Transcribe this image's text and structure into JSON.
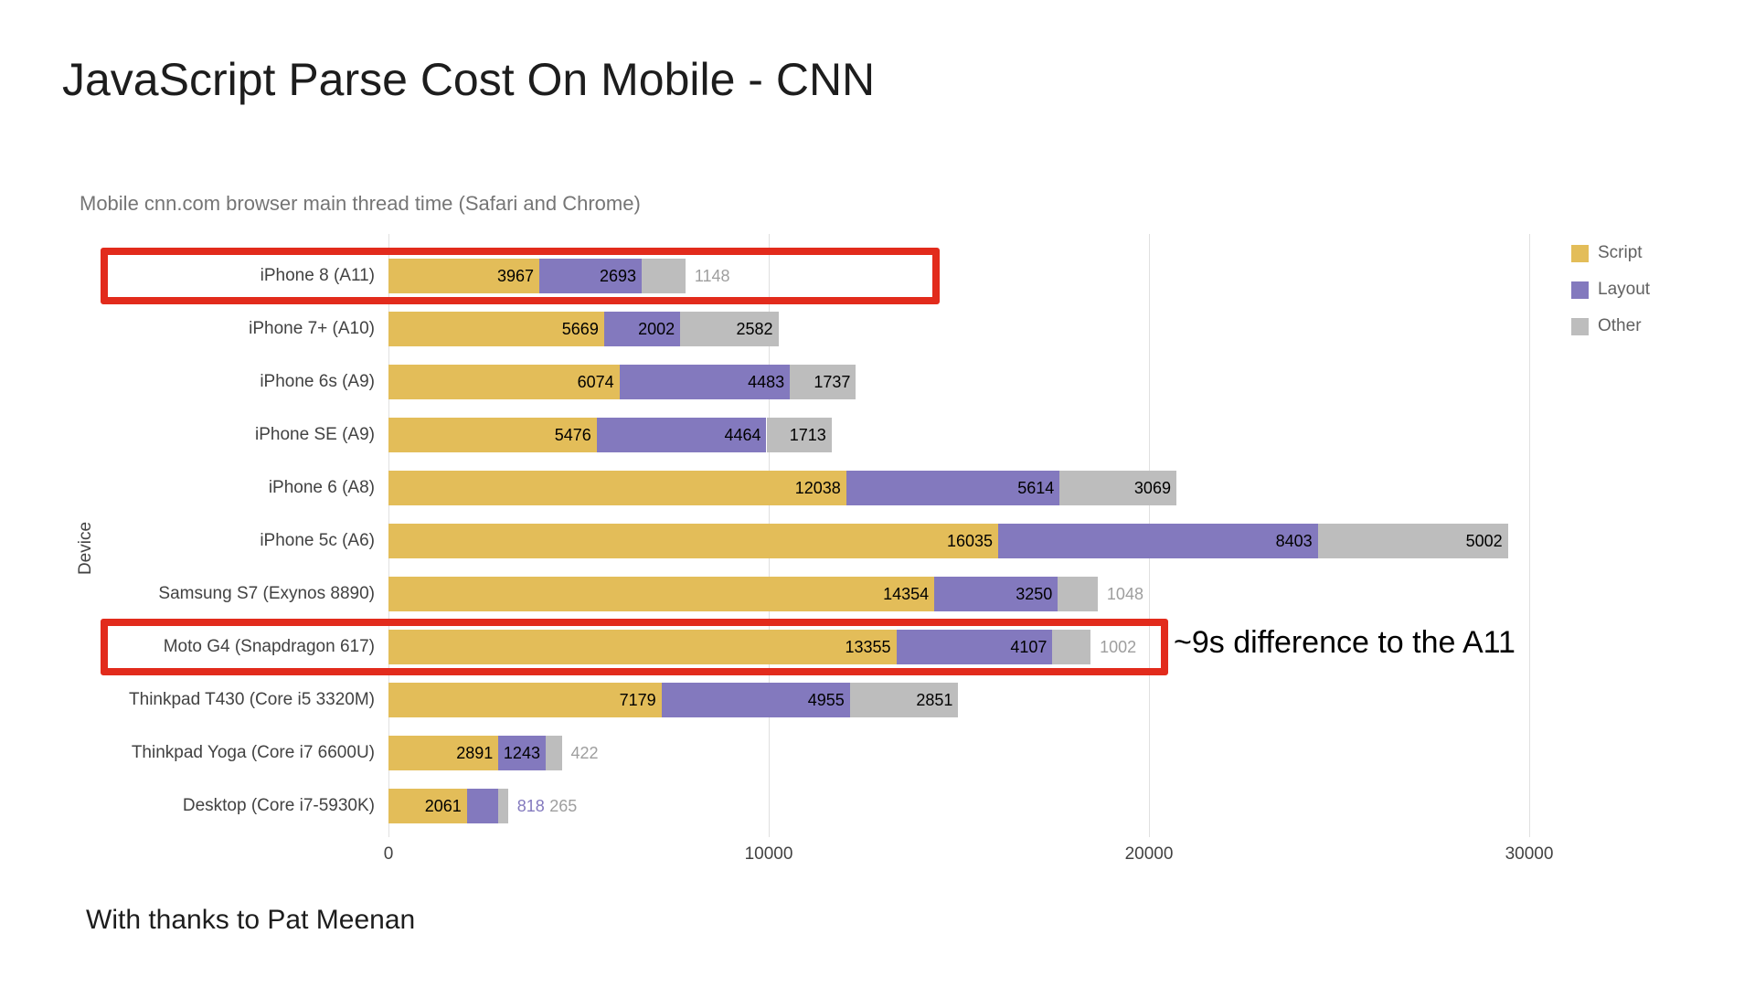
{
  "page": {
    "title": "JavaScript Parse Cost On Mobile - CNN",
    "footer": "With thanks to Pat Meenan",
    "annotation": "~9s difference to the A11"
  },
  "colors": {
    "script": "#E3BD59",
    "layout": "#8379BE",
    "other": "#BDBDBD",
    "highlight_box": "#E22B1C",
    "grid": "#E0E0E0",
    "subtitle_text": "#757575",
    "axis_text": "#424242",
    "legend_text": "#616161"
  },
  "chart_data": {
    "type": "bar",
    "orientation": "horizontal",
    "stacked": true,
    "title": "Mobile cnn.com browser main thread time (Safari and Chrome)",
    "xlabel": "",
    "ylabel": "Device",
    "xlim": [
      0,
      33000
    ],
    "xticks": [
      0,
      10000,
      20000,
      30000
    ],
    "grid": "vertical",
    "legend_position": "top-right",
    "categories": [
      "iPhone 8 (A11)",
      "iPhone 7+ (A10)",
      "iPhone 6s (A9)",
      "iPhone SE (A9)",
      "iPhone 6 (A8)",
      "iPhone 5c (A6)",
      "Samsung S7 (Exynos 8890)",
      "Moto G4 (Snapdragon 617)",
      "Thinkpad T430 (Core i5 3320M)",
      "Thinkpad Yoga (Core i7 6600U)",
      "Desktop (Core i7-5930K)"
    ],
    "series": [
      {
        "name": "Script",
        "color": "#E3BD59",
        "outside_label_color": "#B5922F",
        "values": [
          3967,
          5669,
          6074,
          5476,
          12038,
          16035,
          14354,
          13355,
          7179,
          2891,
          2061
        ]
      },
      {
        "name": "Layout",
        "color": "#8379BE",
        "outside_label_color": "#8379BE",
        "values": [
          2693,
          2002,
          4483,
          4464,
          5614,
          8403,
          3250,
          4107,
          4955,
          1243,
          818
        ]
      },
      {
        "name": "Other",
        "color": "#BDBDBD",
        "outside_label_color": "#9E9E9E",
        "values": [
          1148,
          2582,
          1737,
          1713,
          3069,
          5002,
          1048,
          1002,
          2851,
          422,
          265
        ]
      }
    ],
    "highlighted_rows": [
      {
        "row_index": 0,
        "category": "iPhone 8 (A11)"
      },
      {
        "row_index": 7,
        "category": "Moto G4 (Snapdragon 617)"
      }
    ]
  }
}
